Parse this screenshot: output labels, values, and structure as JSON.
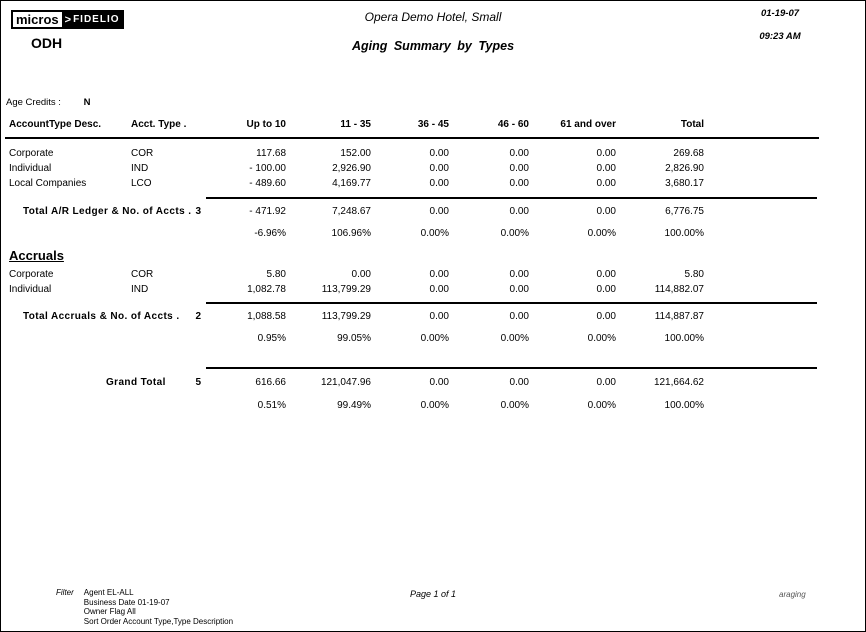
{
  "header": {
    "logo_micros": "micros",
    "logo_chevron": ">",
    "logo_fidelio": "FIDELIO",
    "property_code": "ODH",
    "hotel_name": "Opera Demo Hotel, Small",
    "report_title": "Aging Summary by Types",
    "date": "01-19-07",
    "time": "09:23 AM"
  },
  "options": {
    "age_credits_label": "Age Credits :",
    "age_credits_value": "N"
  },
  "table": {
    "headers": [
      "AccountType Desc.",
      "Acct. Type .",
      "Up to 10",
      "11 - 35",
      "36 - 45",
      "46 - 60",
      "61 and over",
      "Total"
    ]
  },
  "sections": [
    {
      "rows": [
        {
          "desc": "Corporate",
          "type": "COR",
          "values": [
            "117.68",
            "152.00",
            "0.00",
            "0.00",
            "0.00",
            "269.68"
          ]
        },
        {
          "desc": "Individual",
          "type": "IND",
          "values": [
            "- 100.00",
            "2,926.90",
            "0.00",
            "0.00",
            "0.00",
            "2,826.90"
          ]
        },
        {
          "desc": "Local Companies",
          "type": "LCO",
          "values": [
            "- 489.60",
            "4,169.77",
            "0.00",
            "0.00",
            "0.00",
            "3,680.17"
          ]
        }
      ],
      "total": {
        "label": "Total A/R Ledger & No. of Accts .",
        "count": "3",
        "values": [
          "- 471.92",
          "7,248.67",
          "0.00",
          "0.00",
          "0.00",
          "6,776.75"
        ]
      },
      "percentages": [
        "-6.96%",
        "106.96%",
        "0.00%",
        "0.00%",
        "0.00%",
        "100.00%"
      ]
    },
    {
      "heading": "Accruals",
      "rows": [
        {
          "desc": "Corporate",
          "type": "COR",
          "values": [
            "5.80",
            "0.00",
            "0.00",
            "0.00",
            "0.00",
            "5.80"
          ]
        },
        {
          "desc": "Individual",
          "type": "IND",
          "values": [
            "1,082.78",
            "113,799.29",
            "0.00",
            "0.00",
            "0.00",
            "114,882.07"
          ]
        }
      ],
      "total": {
        "label": "Total Accruals & No. of Accts .",
        "count": "2",
        "values": [
          "1,088.58",
          "113,799.29",
          "0.00",
          "0.00",
          "0.00",
          "114,887.87"
        ]
      },
      "percentages": [
        "0.95%",
        "99.05%",
        "0.00%",
        "0.00%",
        "0.00%",
        "100.00%"
      ]
    }
  ],
  "grand_total": {
    "label": "Grand Total",
    "count": "5",
    "values": [
      "616.66",
      "121,047.96",
      "0.00",
      "0.00",
      "0.00",
      "121,664.62"
    ],
    "percentages": [
      "0.51%",
      "99.49%",
      "0.00%",
      "0.00%",
      "0.00%",
      "100.00%"
    ]
  },
  "footer": {
    "filter_label": "Filter",
    "filter_lines": [
      "Agent EL-ALL",
      "Business Date 01-19-07",
      "Owner Flag All",
      "Sort Order Account Type,Type Description"
    ],
    "page_label": "Page 1 of 1",
    "report_code": "araging"
  }
}
